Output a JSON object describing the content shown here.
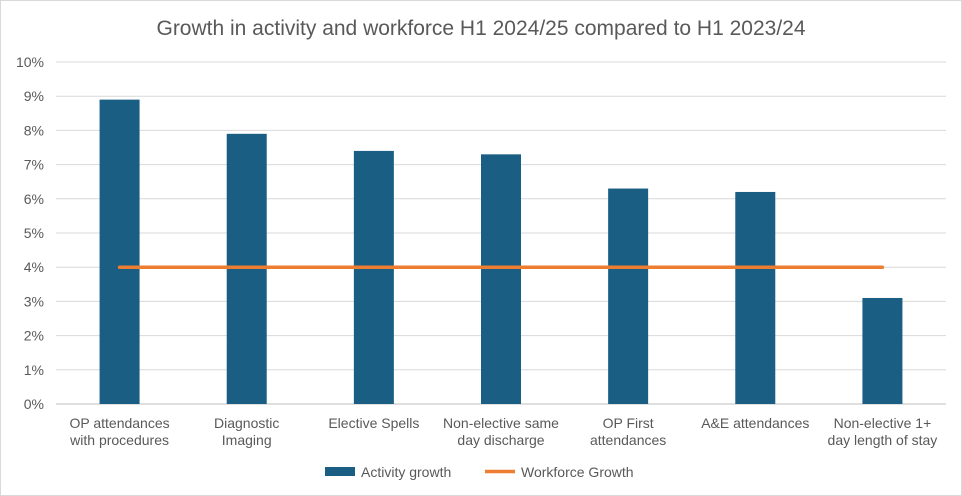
{
  "chart_data": {
    "type": "bar",
    "title": "Growth in activity and workforce H1 2024/25 compared to H1 2023/24",
    "categories": [
      [
        "OP attendances",
        "with procedures"
      ],
      [
        "Diagnostic",
        "Imaging"
      ],
      [
        "Elective Spells"
      ],
      [
        "Non-elective same",
        "day discharge"
      ],
      [
        "OP First",
        "attendances"
      ],
      [
        "A&E attendances"
      ],
      [
        "Non-elective 1+",
        "day length of stay"
      ]
    ],
    "series": [
      {
        "name": "Activity growth",
        "type": "bar",
        "color": "#1a5e83",
        "values": [
          8.9,
          7.9,
          7.4,
          7.3,
          6.3,
          6.2,
          3.1
        ]
      },
      {
        "name": "Workforce Growth",
        "type": "line",
        "color": "#ed7d31",
        "values": [
          4.0,
          4.0,
          4.0,
          4.0,
          4.0,
          4.0,
          4.0
        ]
      }
    ],
    "ylim": [
      0,
      10
    ],
    "yticks": [
      0,
      1,
      2,
      3,
      4,
      5,
      6,
      7,
      8,
      9,
      10
    ],
    "ytick_suffix": "%",
    "grid": true,
    "legend": "bottom-center"
  }
}
